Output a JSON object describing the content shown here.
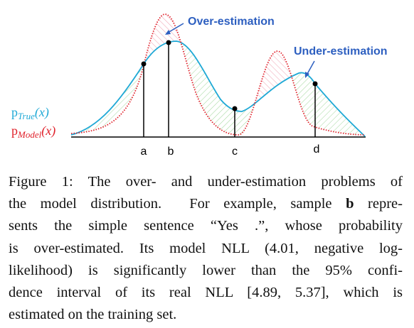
{
  "figure": {
    "annotations": {
      "over": "Over-estimation",
      "under": "Under-estimation"
    },
    "legend": {
      "true": {
        "p": "p",
        "sub": "True",
        "arg": "(x)"
      },
      "model": {
        "p": "p",
        "sub": "Model",
        "arg": "(x)"
      }
    },
    "samples": [
      "a",
      "b",
      "c",
      "d"
    ]
  },
  "caption": {
    "lines": [
      "Figure 1: The over- and under-estimation problems of",
      [
        "the model distribution.  For example, sample ",
        "b",
        " repre-"
      ],
      "sents the simple sentence “Yes .”, whose probability",
      "is over-estimated.  Its model NLL (4.01, negative log-",
      "likelihood) is significantly lower than the 95% confi-",
      "dence interval of its real NLL [4.89, 5.37], which is",
      "estimated on the training set."
    ]
  }
}
